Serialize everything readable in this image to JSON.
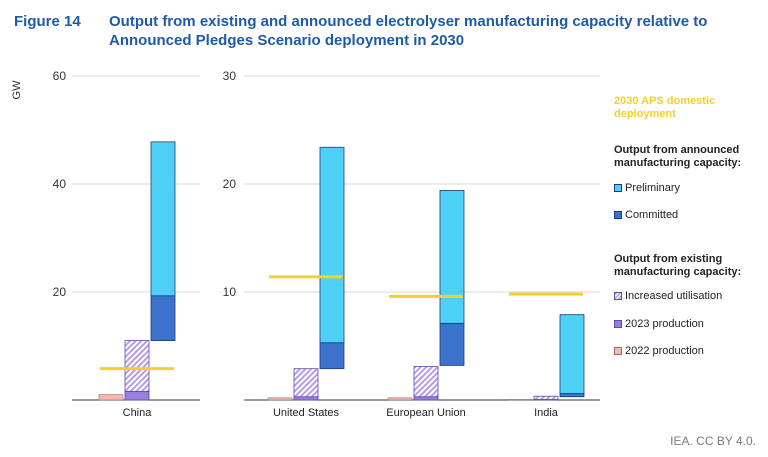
{
  "header": {
    "figure_number": "Figure 14",
    "title": "Output from existing and announced electrolyser manufacturing capacity relative to Announced Pledges Scenario deployment in 2030"
  },
  "credit": "IEA. CC BY 4.0.",
  "legend": {
    "aps": "2030 APS domestic deployment",
    "announced_heading": "Output from announced manufacturing capacity:",
    "preliminary": "Preliminary",
    "committed": "Committed",
    "existing_heading": "Output from existing manufacturing capacity:",
    "increased": "Increased utilisation",
    "p2023": "2023 production",
    "p2022": "2022 production"
  },
  "colors": {
    "preliminary": "#4dd0f5",
    "committed": "#3b73cc",
    "increased_utilisation": "#b49ee8",
    "production_2023": "#9b7fe0",
    "production_2022": "#f4b8b3",
    "aps": "#f5d02a",
    "title": "#1f5aa6"
  },
  "chart_data": [
    {
      "type": "bar",
      "ylabel": "GW",
      "ylim": [
        0,
        60
      ],
      "yticks": [
        20,
        40,
        60
      ],
      "categories": [
        "China"
      ],
      "series": [
        {
          "name": "2022 production",
          "values": [
            1.0
          ]
        },
        {
          "name": "2023 production",
          "values": [
            1.6
          ]
        },
        {
          "name": "Increased utilisation",
          "values": [
            9.4
          ]
        },
        {
          "name": "Committed",
          "values": [
            8.3
          ]
        },
        {
          "name": "Preliminary",
          "values": [
            28.5
          ]
        }
      ],
      "announced_base": [
        11.0
      ],
      "aps_deployment": [
        5.8
      ]
    },
    {
      "type": "bar",
      "ylim": [
        0,
        30
      ],
      "yticks": [
        10,
        20,
        30
      ],
      "categories": [
        "United States",
        "European Union",
        "India"
      ],
      "series": [
        {
          "name": "2022 production",
          "values": [
            0.2,
            0.2,
            0.05
          ]
        },
        {
          "name": "2023 production",
          "values": [
            0.3,
            0.3,
            0.05
          ]
        },
        {
          "name": "Increased utilisation",
          "values": [
            2.6,
            2.8,
            0.3
          ]
        },
        {
          "name": "Committed",
          "values": [
            2.4,
            3.9,
            0.3
          ]
        },
        {
          "name": "Preliminary",
          "values": [
            18.1,
            12.3,
            7.3
          ]
        }
      ],
      "announced_base": [
        2.9,
        3.2,
        0.3
      ],
      "aps_deployment": [
        11.4,
        9.6,
        9.8
      ]
    }
  ]
}
